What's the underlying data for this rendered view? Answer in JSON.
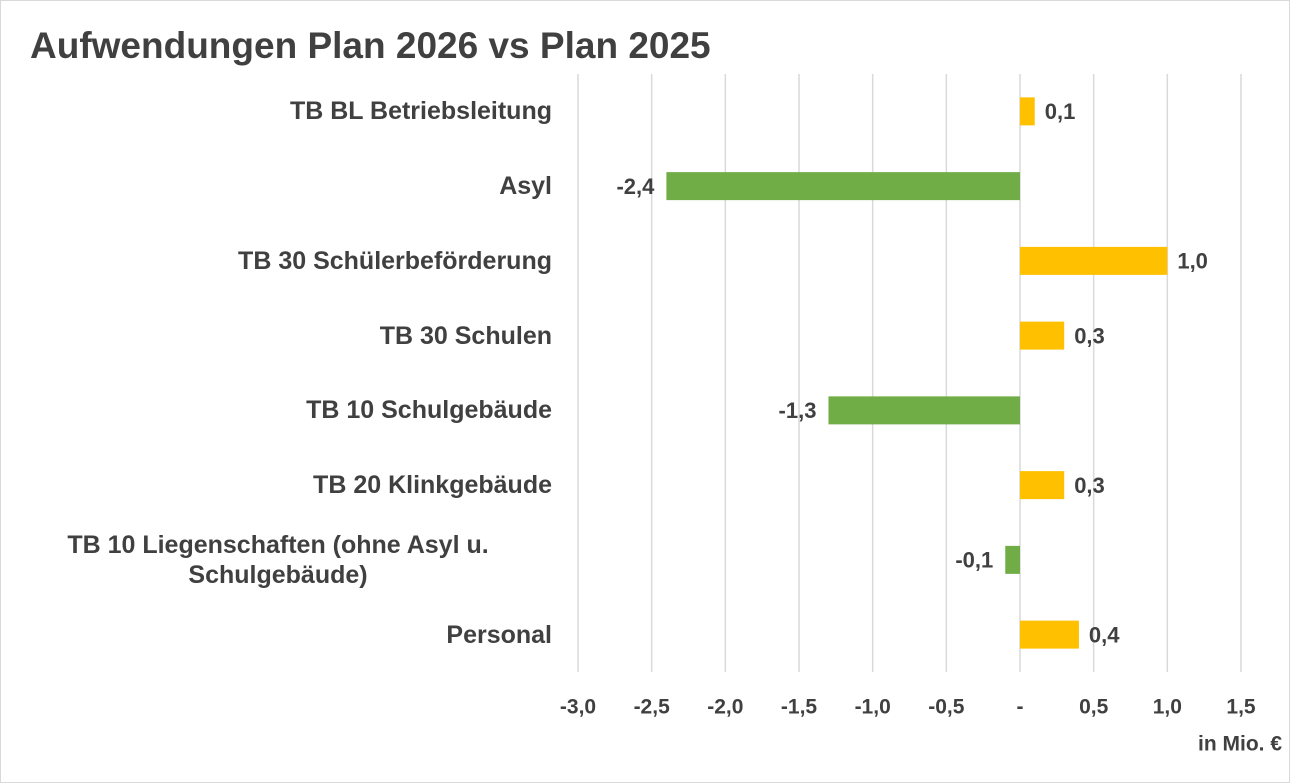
{
  "chart_data": {
    "type": "barh",
    "title": "Aufwendungen Plan 2026 vs Plan 2025",
    "xlabel": "in Mio. €",
    "categories": [
      "TB BL Betriebsleitung",
      "Asyl",
      "TB 30 Schülerbeförderung",
      "TB 30 Schulen",
      "TB 10 Schulgebäude",
      "TB 20 Klinkgebäude",
      "TB 10 Liegenschaften (ohne Asyl u. Schulgebäude)",
      "Personal"
    ],
    "values": [
      0.1,
      -2.4,
      1.0,
      0.3,
      -1.3,
      0.3,
      -0.1,
      0.4
    ],
    "value_labels": [
      "0,1",
      "-2,4",
      "1,0",
      "0,3",
      "-1,3",
      "0,3",
      "-0,1",
      "0,4"
    ],
    "colors": [
      "#ffc000",
      "#70ad47",
      "#ffc000",
      "#ffc000",
      "#70ad47",
      "#ffc000",
      "#70ad47",
      "#ffc000"
    ],
    "xlim": [
      -3,
      1.5
    ],
    "xticks": [
      {
        "value": -3,
        "label": "-3,0"
      },
      {
        "value": -2.5,
        "label": "-2,5"
      },
      {
        "value": -2,
        "label": "-2,0"
      },
      {
        "value": -1.5,
        "label": "-1,5"
      },
      {
        "value": -1,
        "label": "-1,0"
      },
      {
        "value": -0.5,
        "label": "-0,5"
      },
      {
        "value": 0,
        "label": "-"
      },
      {
        "value": 0.5,
        "label": "0,5"
      },
      {
        "value": 1,
        "label": "1,0"
      },
      {
        "value": 1.5,
        "label": "1,5"
      }
    ],
    "grid": true
  }
}
